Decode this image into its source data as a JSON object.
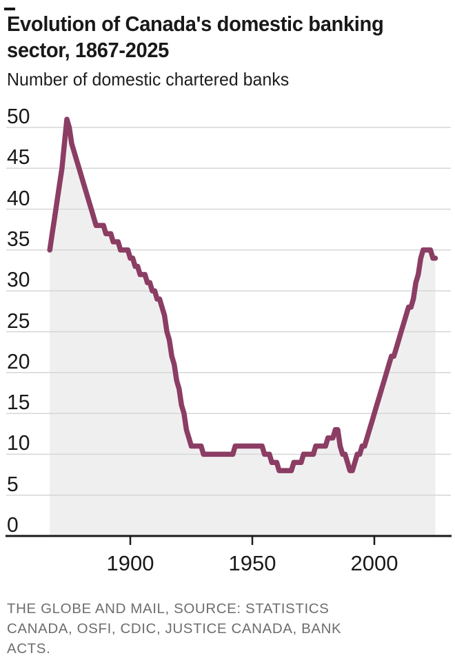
{
  "header": {
    "title": "Evolution of Canada's domestic banking sector, 1867-2025",
    "title_lines": [
      "Evolution of Canada's domestic banking",
      "sector, 1867-2025"
    ],
    "subtitle": "Number of domestic chartered banks"
  },
  "footer": {
    "source": "THE GLOBE AND MAIL, SOURCE: STATISTICS CANADA, OSFI, CDIC, JUSTICE CANADA, BANK ACTS.",
    "source_lines": [
      "THE GLOBE AND MAIL, SOURCE: STATISTICS",
      "CANADA, OSFI, CDIC, JUSTICE CANADA, BANK",
      "ACTS."
    ]
  },
  "chart_data": {
    "type": "area",
    "title": "Evolution of Canada's domestic banking sector, 1867-2025",
    "subtitle": "Number of domestic chartered banks",
    "xlabel": "",
    "ylabel": "Number of domestic chartered banks",
    "xlim": [
      1867,
      2025
    ],
    "ylim": [
      0,
      50
    ],
    "x_ticks": [
      1900,
      1950,
      2000
    ],
    "y_ticks": [
      0,
      5,
      10,
      15,
      20,
      25,
      30,
      35,
      40,
      45,
      50
    ],
    "grid": true,
    "legend": false,
    "line_color": "#8b3d63",
    "area_color": "#f0eff0",
    "grid_color": "#d6d6d6",
    "axis_color": "#1a1a1a",
    "series": [
      {
        "name": "Domestic chartered banks",
        "points": [
          [
            1867,
            35
          ],
          [
            1868,
            37
          ],
          [
            1869,
            39
          ],
          [
            1870,
            41
          ],
          [
            1871,
            43
          ],
          [
            1872,
            45
          ],
          [
            1873,
            48
          ],
          [
            1874,
            51
          ],
          [
            1875,
            50
          ],
          [
            1876,
            48
          ],
          [
            1877,
            47
          ],
          [
            1878,
            46
          ],
          [
            1879,
            45
          ],
          [
            1880,
            44
          ],
          [
            1881,
            43
          ],
          [
            1882,
            42
          ],
          [
            1883,
            41
          ],
          [
            1884,
            40
          ],
          [
            1885,
            39
          ],
          [
            1886,
            38
          ],
          [
            1889,
            38
          ],
          [
            1890,
            37
          ],
          [
            1892,
            37
          ],
          [
            1893,
            36
          ],
          [
            1895,
            36
          ],
          [
            1896,
            35
          ],
          [
            1899,
            35
          ],
          [
            1900,
            34
          ],
          [
            1901,
            34
          ],
          [
            1902,
            33
          ],
          [
            1903,
            33
          ],
          [
            1904,
            32
          ],
          [
            1906,
            32
          ],
          [
            1907,
            31
          ],
          [
            1908,
            31
          ],
          [
            1909,
            30
          ],
          [
            1910,
            30
          ],
          [
            1911,
            29
          ],
          [
            1912,
            29
          ],
          [
            1913,
            28
          ],
          [
            1914,
            27
          ],
          [
            1915,
            25
          ],
          [
            1916,
            24
          ],
          [
            1917,
            22
          ],
          [
            1918,
            21
          ],
          [
            1919,
            19
          ],
          [
            1920,
            18
          ],
          [
            1921,
            16
          ],
          [
            1922,
            15
          ],
          [
            1923,
            13
          ],
          [
            1924,
            12
          ],
          [
            1925,
            11
          ],
          [
            1929,
            11
          ],
          [
            1930,
            10
          ],
          [
            1942,
            10
          ],
          [
            1943,
            11
          ],
          [
            1954,
            11
          ],
          [
            1955,
            10
          ],
          [
            1957,
            10
          ],
          [
            1958,
            9
          ],
          [
            1960,
            9
          ],
          [
            1961,
            8
          ],
          [
            1966,
            8
          ],
          [
            1967,
            9
          ],
          [
            1970,
            9
          ],
          [
            1971,
            10
          ],
          [
            1975,
            10
          ],
          [
            1976,
            11
          ],
          [
            1980,
            11
          ],
          [
            1981,
            12
          ],
          [
            1983,
            12
          ],
          [
            1984,
            13
          ],
          [
            1985,
            13
          ],
          [
            1986,
            11
          ],
          [
            1987,
            10
          ],
          [
            1988,
            10
          ],
          [
            1989,
            9
          ],
          [
            1990,
            8
          ],
          [
            1991,
            8
          ],
          [
            1992,
            9
          ],
          [
            1993,
            10
          ],
          [
            1994,
            10
          ],
          [
            1995,
            11
          ],
          [
            1996,
            11
          ],
          [
            1997,
            12
          ],
          [
            1998,
            13
          ],
          [
            1999,
            14
          ],
          [
            2000,
            15
          ],
          [
            2001,
            16
          ],
          [
            2002,
            17
          ],
          [
            2003,
            18
          ],
          [
            2004,
            19
          ],
          [
            2005,
            20
          ],
          [
            2006,
            21
          ],
          [
            2007,
            22
          ],
          [
            2008,
            22
          ],
          [
            2009,
            23
          ],
          [
            2010,
            24
          ],
          [
            2011,
            25
          ],
          [
            2012,
            26
          ],
          [
            2013,
            27
          ],
          [
            2014,
            28
          ],
          [
            2015,
            28
          ],
          [
            2016,
            29
          ],
          [
            2017,
            31
          ],
          [
            2018,
            32
          ],
          [
            2019,
            34
          ],
          [
            2020,
            35
          ],
          [
            2023,
            35
          ],
          [
            2024,
            34
          ],
          [
            2025,
            34
          ]
        ]
      }
    ]
  }
}
